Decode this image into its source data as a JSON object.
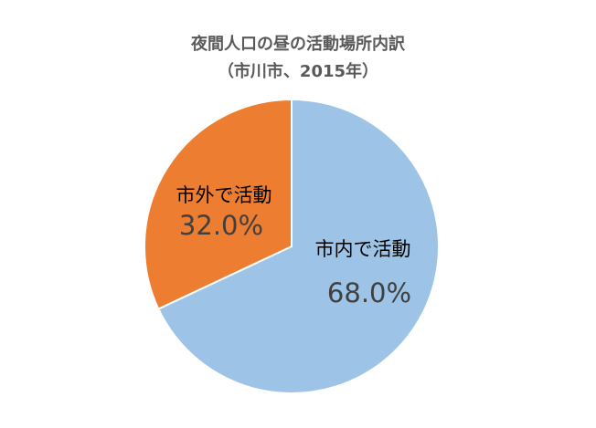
{
  "chart_data": {
    "type": "pie",
    "title": "夜間人口の昼の活動場所内訳",
    "subtitle": "（市川市、2015年）",
    "slices": [
      {
        "label": "市内で活動",
        "value": 68.0,
        "value_label": "68.0%",
        "color": "#9dc3e6"
      },
      {
        "label": "市外で活動",
        "value": 32.0,
        "value_label": "32.0%",
        "color": "#ed7d31"
      }
    ],
    "start_angle": "12 o'clock",
    "direction": "clockwise",
    "legend": "none",
    "data_labels": "inside",
    "label_color": "#404040"
  }
}
